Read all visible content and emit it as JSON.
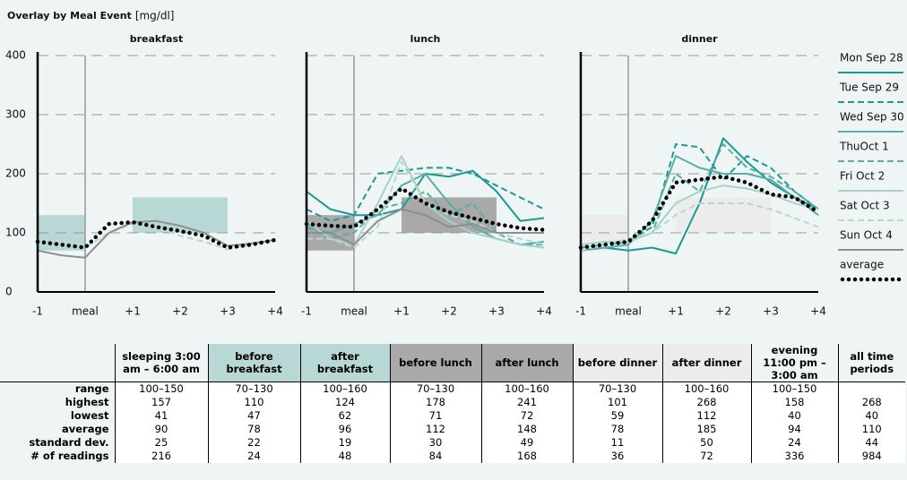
{
  "title": "Overlay by Meal Event",
  "unit": "[mg/dl]",
  "chart_data": [
    {
      "type": "line",
      "title": "breakfast",
      "x": [
        -1,
        -0.5,
        0,
        0.5,
        1,
        1.5,
        2,
        2.5,
        3,
        3.5,
        4
      ],
      "xlim": [
        -1,
        4
      ],
      "xticks": [
        {
          "value": -1,
          "label": "-1"
        },
        {
          "value": 0,
          "label": "meal"
        },
        {
          "value": 1,
          "label": "+1"
        },
        {
          "value": 2,
          "label": "+2"
        },
        {
          "value": 3,
          "label": "+3"
        },
        {
          "value": 4,
          "label": "+4"
        }
      ],
      "ylim": [
        0,
        400
      ],
      "yticks": [
        0,
        100,
        200,
        300,
        400
      ],
      "ytick_labels": true,
      "grid": true,
      "vline": 0,
      "bands": [
        {
          "x": [
            -1,
            0
          ],
          "y": [
            70,
            130
          ],
          "color": "#b8d8d5"
        },
        {
          "x": [
            1,
            3
          ],
          "y": [
            100,
            160
          ],
          "color": "#b8d8d5"
        }
      ],
      "series": [
        {
          "name": "Sat Oct 3",
          "color": "#b8d6d1",
          "dash": "dashed",
          "values": [
            85,
            80,
            75,
            100,
            115,
            110,
            95,
            85,
            72,
            80,
            88
          ]
        },
        {
          "name": "Sun Oct 4",
          "color": "#8e8e8e",
          "dash": "solid",
          "values": [
            70,
            62,
            58,
            100,
            118,
            120,
            112,
            100,
            78,
            82,
            88
          ]
        },
        {
          "name": "average",
          "color": "#000000",
          "dash": "dotted",
          "values": [
            85,
            80,
            75,
            115,
            118,
            110,
            103,
            95,
            75,
            80,
            88
          ]
        }
      ]
    },
    {
      "type": "line",
      "title": "lunch",
      "x": [
        -1,
        -0.5,
        0,
        0.5,
        1,
        1.5,
        2,
        2.5,
        3,
        3.5,
        4
      ],
      "xlim": [
        -1,
        4
      ],
      "xticks": [
        {
          "value": -1,
          "label": "-1"
        },
        {
          "value": 0,
          "label": "meal"
        },
        {
          "value": 1,
          "label": "+1"
        },
        {
          "value": 2,
          "label": "+2"
        },
        {
          "value": 3,
          "label": "+3"
        },
        {
          "value": 4,
          "label": "+4"
        }
      ],
      "ylim": [
        0,
        400
      ],
      "yticks": [
        0,
        100,
        200,
        300,
        400
      ],
      "ytick_labels": false,
      "grid": true,
      "vline": 0,
      "bands": [
        {
          "x": [
            -1,
            0
          ],
          "y": [
            70,
            130
          ],
          "color": "#a9a9a9"
        },
        {
          "x": [
            1,
            3
          ],
          "y": [
            100,
            160
          ],
          "color": "#a9a9a9"
        }
      ],
      "series": [
        {
          "name": "Mon Sep 28",
          "color": "#1a9a92",
          "dash": "solid",
          "values": [
            170,
            140,
            130,
            130,
            140,
            200,
            195,
            205,
            170,
            120,
            125
          ]
        },
        {
          "name": "Tue Sep 29",
          "color": "#1a9a92",
          "dash": "dashed",
          "values": [
            140,
            120,
            130,
            200,
            205,
            210,
            210,
            200,
            180,
            160,
            140
          ]
        },
        {
          "name": "Wed Sep 30",
          "color": "#5aaea7",
          "dash": "solid",
          "values": [
            110,
            100,
            115,
            130,
            180,
            200,
            150,
            110,
            90,
            80,
            85
          ]
        },
        {
          "name": "ThuOct 1",
          "color": "#5aaea7",
          "dash": "dashed",
          "values": [
            110,
            90,
            100,
            140,
            150,
            170,
            130,
            150,
            100,
            80,
            80
          ]
        },
        {
          "name": "Fri Oct 2",
          "color": "#a9d0ca",
          "dash": "solid",
          "values": [
            120,
            90,
            80,
            150,
            230,
            150,
            120,
            100,
            90,
            80,
            75
          ]
        },
        {
          "name": "Sat Oct 3",
          "color": "#b8d6d1",
          "dash": "dashed",
          "values": [
            90,
            90,
            75,
            110,
            220,
            150,
            130,
            120,
            100,
            90,
            80
          ]
        },
        {
          "name": "Sun Oct 4",
          "color": "#8e8e8e",
          "dash": "solid",
          "values": [
            100,
            100,
            80,
            120,
            140,
            130,
            110,
            115,
            100,
            100,
            100
          ]
        },
        {
          "name": "average",
          "color": "#000000",
          "dash": "dotted",
          "values": [
            115,
            112,
            110,
            140,
            175,
            150,
            135,
            125,
            115,
            108,
            105
          ]
        }
      ]
    },
    {
      "type": "line",
      "title": "dinner",
      "x": [
        -1,
        -0.5,
        0,
        0.5,
        1,
        1.5,
        2,
        2.5,
        3,
        3.5,
        4
      ],
      "xlim": [
        -1,
        4
      ],
      "xticks": [
        {
          "value": -1,
          "label": "-1"
        },
        {
          "value": 0,
          "label": "meal"
        },
        {
          "value": 1,
          "label": "+1"
        },
        {
          "value": 2,
          "label": "+2"
        },
        {
          "value": 3,
          "label": "+3"
        },
        {
          "value": 4,
          "label": "+4"
        }
      ],
      "ylim": [
        0,
        400
      ],
      "yticks": [
        0,
        100,
        200,
        300,
        400
      ],
      "ytick_labels": false,
      "grid": true,
      "vline": 0,
      "bands": [
        {
          "x": [
            -1,
            0
          ],
          "y": [
            70,
            130
          ],
          "color": "#ececec"
        },
        {
          "x": [
            1,
            3
          ],
          "y": [
            100,
            160
          ],
          "color": "#ececec"
        }
      ],
      "series": [
        {
          "name": "Mon Sep 28",
          "color": "#1a9a92",
          "dash": "solid",
          "values": [
            70,
            75,
            70,
            75,
            65,
            150,
            260,
            220,
            185,
            160,
            140
          ]
        },
        {
          "name": "Tue Sep 29",
          "color": "#1a9a92",
          "dash": "dashed",
          "values": [
            75,
            80,
            85,
            110,
            250,
            245,
            190,
            230,
            210,
            170,
            140
          ]
        },
        {
          "name": "Wed Sep 30",
          "color": "#5aaea7",
          "dash": "solid",
          "values": [
            70,
            75,
            80,
            120,
            230,
            210,
            200,
            200,
            190,
            160,
            130
          ]
        },
        {
          "name": "ThuOct 1",
          "color": "#5aaea7",
          "dash": "dashed",
          "values": [
            75,
            80,
            85,
            100,
            200,
            170,
            250,
            210,
            195,
            170,
            140
          ]
        },
        {
          "name": "Fri Oct 2",
          "color": "#a9d0ca",
          "dash": "solid",
          "values": [
            80,
            85,
            85,
            100,
            150,
            170,
            180,
            175,
            165,
            150,
            140
          ]
        },
        {
          "name": "Sat Oct 3",
          "color": "#b8d6d1",
          "dash": "dashed",
          "values": [
            70,
            80,
            90,
            100,
            130,
            150,
            150,
            150,
            140,
            125,
            110
          ]
        },
        {
          "name": "average",
          "color": "#000000",
          "dash": "dotted",
          "values": [
            75,
            80,
            85,
            120,
            185,
            190,
            195,
            185,
            165,
            160,
            135
          ]
        }
      ]
    }
  ],
  "table": {
    "columns": [
      "sleeping 3:00 am – 6:00 am",
      "before breakfast",
      "after breakfast",
      "before lunch",
      "after lunch",
      "before dinner",
      "after dinner",
      "evening 11:00 pm – 3:00 am",
      "all time periods"
    ],
    "rows": [
      {
        "label": "range",
        "cells": [
          "100–150",
          "70–130",
          "100–160",
          "70–130",
          "100–160",
          "70–130",
          "100–160",
          "100–150",
          null
        ]
      },
      {
        "label": "highest",
        "cells": [
          157,
          110,
          124,
          178,
          241,
          101,
          268,
          158,
          268
        ]
      },
      {
        "label": "lowest",
        "cells": [
          41,
          47,
          62,
          71,
          72,
          59,
          112,
          40,
          40
        ]
      },
      {
        "label": "average",
        "cells": [
          90,
          78,
          96,
          112,
          148,
          78,
          185,
          94,
          110
        ]
      },
      {
        "label": "standard dev.",
        "cells": [
          25,
          22,
          19,
          30,
          49,
          11,
          50,
          24,
          44
        ]
      },
      {
        "label": "# of readings",
        "cells": [
          216,
          24,
          48,
          84,
          168,
          36,
          72,
          336,
          984
        ]
      }
    ]
  }
}
